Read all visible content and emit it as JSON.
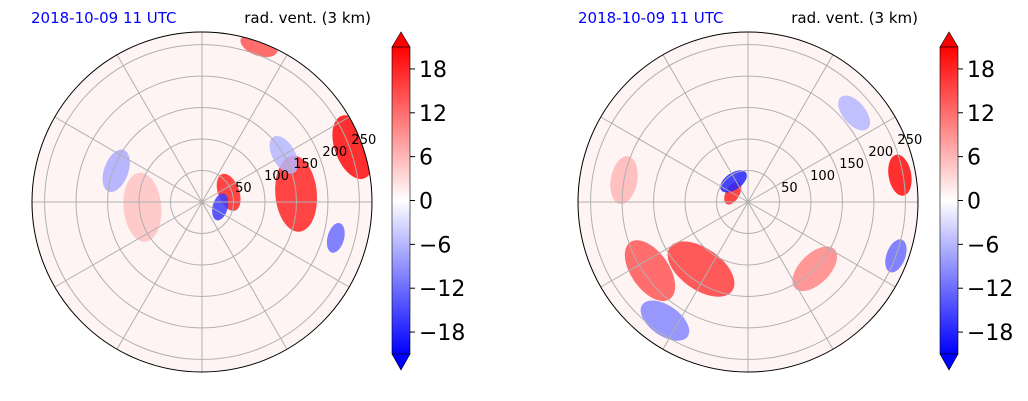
{
  "chart_data": [
    {
      "type": "heatmap",
      "projection": "polar",
      "title_left": "2018-10-09 11 UTC",
      "title_right": "rad. vent. (3 km)",
      "title_left_color": "#0000ff",
      "radial_ticks": [
        "50",
        "100",
        "150",
        "200",
        "250"
      ],
      "radial_tick_values": [
        50,
        100,
        150,
        200,
        250
      ],
      "r_max": 270,
      "colorbar": {
        "ticks": [
          "18",
          "12",
          "6",
          "0",
          "−6",
          "−12",
          "−18"
        ],
        "tick_values": [
          18,
          12,
          6,
          0,
          -6,
          -12,
          -18
        ],
        "range": [
          -21,
          21
        ],
        "extend": "both",
        "colormap": "bwr"
      },
      "features": [
        {
          "r": 150,
          "theta": 5,
          "spread": 55,
          "value": 18
        },
        {
          "r": 255,
          "theta": 20,
          "spread": 48,
          "value": 20
        },
        {
          "r": 265,
          "theta": 70,
          "spread": 28,
          "value": 14
        },
        {
          "r": 45,
          "theta": 20,
          "spread": 28,
          "value": 18
        },
        {
          "r": 30,
          "theta": 345,
          "spread": 20,
          "value": -16
        },
        {
          "r": 145,
          "theta": 160,
          "spread": 32,
          "value": -7
        },
        {
          "r": 95,
          "theta": 185,
          "spread": 50,
          "value": 5
        },
        {
          "r": 220,
          "theta": 345,
          "spread": 22,
          "value": -12
        },
        {
          "r": 150,
          "theta": 30,
          "spread": 30,
          "value": -6
        }
      ]
    },
    {
      "type": "heatmap",
      "projection": "polar",
      "title_left": "2018-10-09 11 UTC",
      "title_right": "rad. vent. (3 km)",
      "title_left_color": "#0000ff",
      "radial_ticks": [
        "50",
        "100",
        "150",
        "200",
        "250"
      ],
      "radial_tick_values": [
        50,
        100,
        150,
        200,
        250
      ],
      "r_max": 270,
      "colorbar": {
        "ticks": [
          "18",
          "12",
          "6",
          "0",
          "−6",
          "−12",
          "−18"
        ],
        "tick_values": [
          18,
          12,
          6,
          0,
          -6,
          -12,
          -18
        ],
        "range": [
          -21,
          21
        ],
        "extend": "both",
        "colormap": "bwr"
      },
      "features": [
        {
          "r": 28,
          "theta": 150,
          "spread": 18,
          "value": 18
        },
        {
          "r": 40,
          "theta": 125,
          "spread": 22,
          "value": -18
        },
        {
          "r": 130,
          "theta": 235,
          "spread": 55,
          "value": 16
        },
        {
          "r": 190,
          "theta": 215,
          "spread": 50,
          "value": 14
        },
        {
          "r": 150,
          "theta": 315,
          "spread": 40,
          "value": 10
        },
        {
          "r": 245,
          "theta": 10,
          "spread": 30,
          "value": 20
        },
        {
          "r": 250,
          "theta": 340,
          "spread": 25,
          "value": -12
        },
        {
          "r": 230,
          "theta": 235,
          "spread": 40,
          "value": -10
        },
        {
          "r": 200,
          "theta": 170,
          "spread": 35,
          "value": 6
        },
        {
          "r": 220,
          "theta": 40,
          "spread": 30,
          "value": -6
        }
      ]
    }
  ]
}
